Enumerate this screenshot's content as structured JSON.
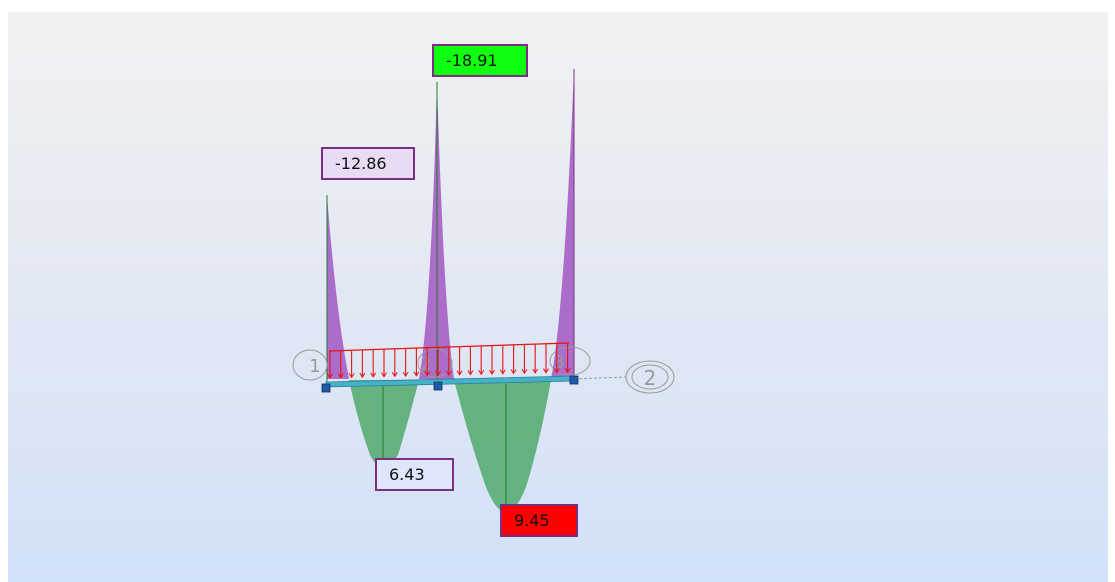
{
  "diagram": {
    "nodes": [
      "1",
      "2",
      "3"
    ],
    "support_tag": "2",
    "moment_labels": [
      {
        "id": "neg-left",
        "value": "-12.86",
        "kind": "negative",
        "color": "#e7dcf4"
      },
      {
        "id": "neg-mid",
        "value": "-18.91",
        "kind": "negative-max",
        "color": "#10ff10"
      },
      {
        "id": "pos-span1",
        "value": "6.43",
        "kind": "positive",
        "color": "#dfe6fb"
      },
      {
        "id": "pos-span2",
        "value": "9.45",
        "kind": "positive-max",
        "color": "#ff0000"
      }
    ],
    "colors": {
      "negative_moment": "#a256c2",
      "positive_moment": "#3ea05a",
      "distributed_load": "#e81212",
      "beam": "#46b2c7",
      "node": "#1f5aa8",
      "label_border": "#7b2f82",
      "tag_outline": "#9a9a9a"
    }
  }
}
